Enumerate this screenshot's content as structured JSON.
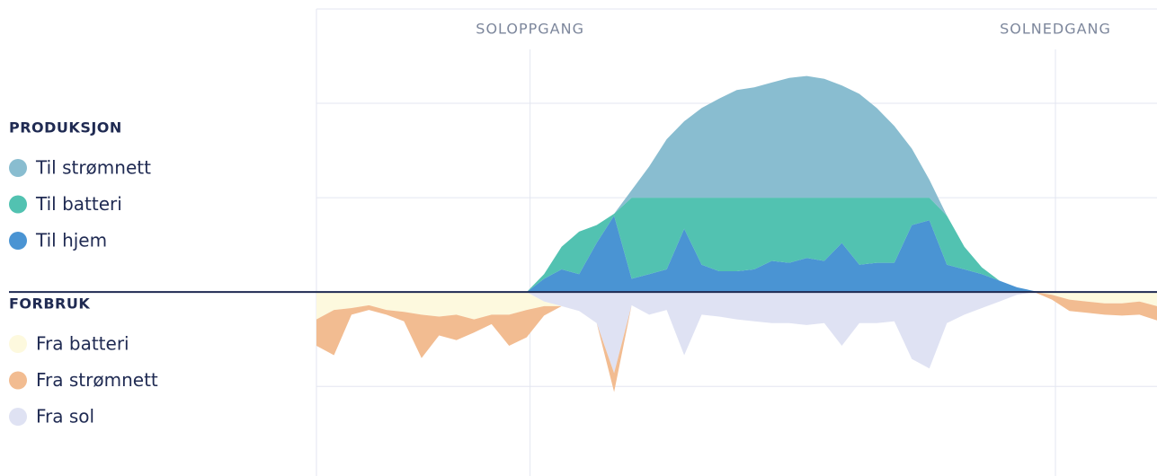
{
  "chart_data": {
    "type": "area",
    "x": [
      0,
      0.5,
      1,
      1.5,
      2,
      2.5,
      3,
      3.5,
      4,
      4.5,
      5,
      5.5,
      6,
      6.5,
      7,
      7.5,
      8,
      8.5,
      9,
      9.5,
      10,
      10.5,
      11,
      11.5,
      12,
      12.5,
      13,
      13.5,
      14,
      14.5,
      15,
      15.5,
      16,
      16.5,
      17,
      17.5,
      18,
      18.5,
      19,
      19.5,
      20,
      20.5,
      21,
      21.5,
      22,
      22.5,
      23,
      23.5,
      24
    ],
    "xlim": [
      0,
      24
    ],
    "ylim": [
      -1.95,
      3
    ],
    "yticks": [
      -1,
      0,
      1,
      2,
      3
    ],
    "grid": true,
    "annotations": [
      {
        "text": "SOLOPPGANG",
        "x": 6.1
      },
      {
        "text": "SOLNEDGANG",
        "x": 21.1
      }
    ],
    "series": [
      {
        "name": "Til strømnett",
        "group": "PRODUKSJON",
        "color": "#89bdd0",
        "values": [
          0,
          0,
          0,
          0,
          0,
          0,
          0,
          0,
          0,
          0,
          0,
          0,
          0,
          0,
          0,
          0,
          0,
          0,
          0.08,
          0.33,
          0.62,
          0.81,
          0.95,
          1.05,
          1.14,
          1.17,
          1.22,
          1.27,
          1.29,
          1.26,
          1.19,
          1.1,
          0.95,
          0.76,
          0.52,
          0.19,
          0,
          0,
          0,
          0,
          0,
          0,
          0,
          0,
          0,
          0,
          0,
          0,
          0
        ]
      },
      {
        "name": "Til batteri",
        "group": "PRODUKSJON",
        "color": "#52c2b1",
        "values": [
          0,
          0,
          0,
          0,
          0,
          0,
          0,
          0,
          0,
          0,
          0,
          0,
          0,
          0.05,
          0.24,
          0.45,
          0.19,
          0.02,
          0.86,
          0.81,
          0.76,
          0.33,
          0.71,
          0.78,
          0.78,
          0.76,
          0.67,
          0.69,
          0.64,
          0.67,
          0.48,
          0.71,
          0.69,
          0.69,
          0.29,
          0.24,
          0.52,
          0.24,
          0.07,
          0,
          0,
          0,
          0,
          0,
          0,
          0,
          0,
          0,
          0
        ]
      },
      {
        "name": "Til hjem",
        "group": "PRODUKSJON",
        "color": "#4a94d3",
        "values": [
          0,
          0,
          0,
          0,
          0,
          0,
          0,
          0,
          0,
          0,
          0,
          0,
          0,
          0.14,
          0.24,
          0.19,
          0.52,
          0.81,
          0.14,
          0.19,
          0.24,
          0.67,
          0.29,
          0.22,
          0.22,
          0.24,
          0.33,
          0.31,
          0.36,
          0.33,
          0.52,
          0.29,
          0.31,
          0.31,
          0.71,
          0.76,
          0.29,
          0.24,
          0.19,
          0.12,
          0.05,
          0.01,
          0,
          0,
          0,
          0,
          0,
          0,
          0
        ]
      },
      {
        "name": "Fra batteri",
        "group": "FORBRUK",
        "color": "#fdf9de",
        "values": [
          -0.29,
          -0.19,
          -0.17,
          -0.14,
          -0.19,
          -0.21,
          -0.24,
          -0.26,
          -0.24,
          -0.29,
          -0.24,
          -0.24,
          -0.19,
          -0.05,
          0,
          0,
          0,
          0,
          0,
          0,
          0,
          0,
          0,
          0,
          0,
          0,
          0,
          0,
          0,
          0,
          0,
          0,
          0,
          0,
          0,
          0,
          0,
          0,
          0,
          0,
          0,
          0,
          -0.03,
          -0.08,
          -0.1,
          -0.12,
          -0.12,
          -0.1,
          -0.15
        ]
      },
      {
        "name": "Fra strømnett",
        "group": "FORBRUK",
        "color": "#f2bc91",
        "values": [
          -0.28,
          -0.48,
          -0.07,
          -0.05,
          -0.05,
          -0.1,
          -0.46,
          -0.2,
          -0.27,
          -0.14,
          -0.1,
          -0.33,
          -0.29,
          -0.1,
          0,
          0,
          0,
          -0.2,
          0,
          0,
          0,
          0,
          0,
          0,
          0,
          0,
          0,
          0,
          0,
          0,
          0,
          0,
          0,
          0,
          0,
          0,
          0,
          0,
          0,
          0,
          0,
          0,
          -0.05,
          -0.12,
          -0.12,
          -0.12,
          -0.13,
          -0.14,
          -0.15
        ]
      },
      {
        "name": "Fra sol",
        "group": "FORBRUK",
        "color": "#dfe2f3",
        "values": [
          0,
          0,
          0,
          0,
          0,
          0,
          0,
          0,
          0,
          0,
          0,
          0,
          0,
          -0.1,
          -0.15,
          -0.2,
          -0.33,
          -0.86,
          -0.14,
          -0.24,
          -0.19,
          -0.67,
          -0.24,
          -0.26,
          -0.29,
          -0.31,
          -0.33,
          -0.33,
          -0.35,
          -0.33,
          -0.57,
          -0.33,
          -0.33,
          -0.31,
          -0.71,
          -0.81,
          -0.33,
          -0.24,
          -0.17,
          -0.1,
          -0.03,
          0,
          0,
          0,
          0,
          0,
          0,
          0,
          0
        ]
      }
    ]
  }
}
